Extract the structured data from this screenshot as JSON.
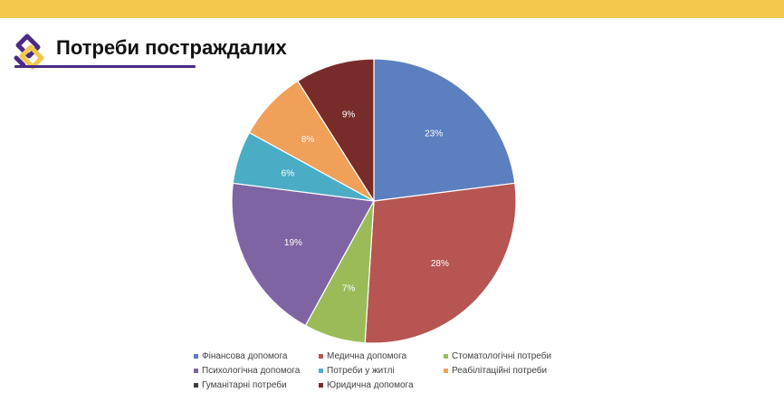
{
  "slide": {
    "title": "Потреби постраждалих",
    "accent_color": "#f2c94c",
    "brand_color": "#4b2a86"
  },
  "chart_data": {
    "type": "pie",
    "title": "",
    "start_angle_deg": 0,
    "direction": "clockwise",
    "legend_position": "bottom",
    "slices": [
      {
        "label": "Фінансова допомога",
        "value": 23,
        "display": "23%",
        "color": "#5b7fbf"
      },
      {
        "label": "Медична допомога",
        "value": 28,
        "display": "28%",
        "color": "#b65552"
      },
      {
        "label": "Стоматологічні потреби",
        "value": 7,
        "display": "7%",
        "color": "#9bbb59"
      },
      {
        "label": "Психологічна допомога",
        "value": 19,
        "display": "19%",
        "color": "#7e64a3"
      },
      {
        "label": "Потреби у житлі",
        "value": 6,
        "display": "6%",
        "color": "#4bacc6"
      },
      {
        "label": "Реабілітаційні потреби",
        "value": 8,
        "display": "8%",
        "color": "#f1a059"
      },
      {
        "label": "Гуманітарні потреби",
        "value": 0,
        "display": "",
        "color": "#3d3d3d"
      },
      {
        "label": "Юридична допомога",
        "value": 9,
        "display": "9%",
        "color": "#772c2a"
      }
    ]
  }
}
